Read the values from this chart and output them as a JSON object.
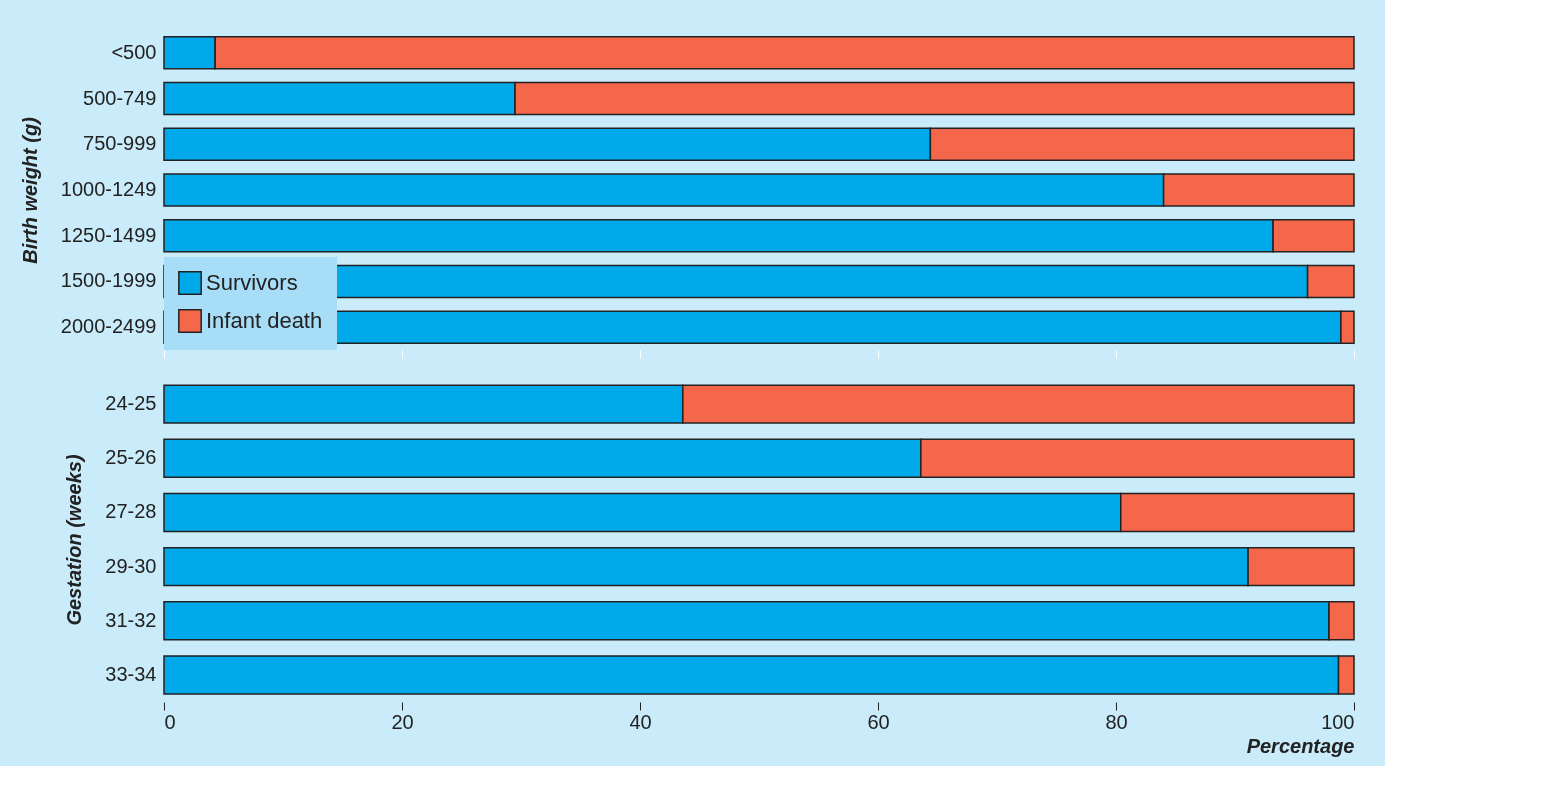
{
  "chart_data": [
    {
      "type": "bar",
      "orientation": "horizontal",
      "stacked": true,
      "ylabel": "Birth weight (g)",
      "categories": [
        "<500",
        "500-749",
        "750-999",
        "1000-1249",
        "1250-1499",
        "1500-1999",
        "2000-2499"
      ],
      "series": [
        {
          "name": "Survivors",
          "color": "#00aaea",
          "values": [
            4.3,
            29.5,
            64.4,
            84,
            93.2,
            96.1,
            98.9
          ]
        },
        {
          "name": "Infant death",
          "color": "#f4674a",
          "values": [
            95.7,
            70.5,
            35.6,
            16,
            6.8,
            3.9,
            1.1
          ]
        }
      ],
      "xlim": [
        0,
        100
      ],
      "xticks": [
        {
          "value": 0,
          "label": null
        },
        {
          "value": 20,
          "label": null
        },
        {
          "value": 40,
          "label": null
        },
        {
          "value": 60,
          "label": null
        },
        {
          "value": 80,
          "label": null
        },
        {
          "value": 100,
          "label": null
        }
      ],
      "tick_labels": "y",
      "legend": "bottom left",
      "grid": false
    },
    {
      "type": "bar",
      "orientation": "horizontal",
      "stacked": true,
      "ylabel": "Gestation (weeks)",
      "xlabel": "Percentage",
      "categories": [
        "24-25",
        "25-26",
        "27-28",
        "29-30",
        "31-32",
        "33-34"
      ],
      "series": [
        {
          "color": "#00aaea",
          "values": [
            43.6,
            63.6,
            80.4,
            91.1,
            97.9,
            98.7
          ]
        },
        {
          "color": "#f4674a",
          "values": [
            56.4,
            36.4,
            19.6,
            8.9,
            2.1,
            1.3
          ]
        }
      ],
      "xlim": [
        0,
        100
      ],
      "xticks": [
        0,
        20,
        40,
        60,
        80,
        100
      ],
      "legend": false,
      "grid": false
    }
  ]
}
